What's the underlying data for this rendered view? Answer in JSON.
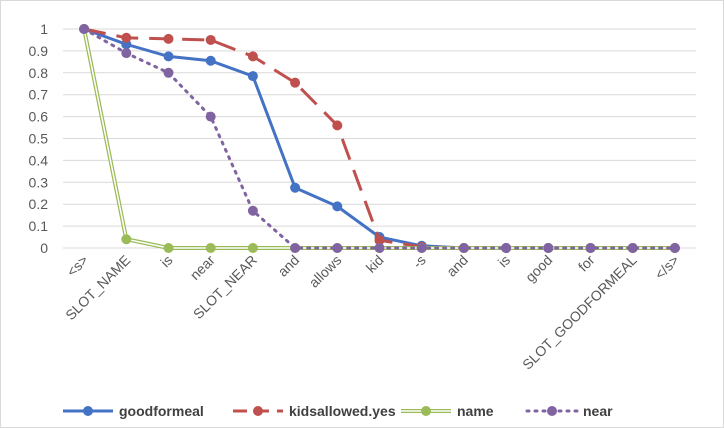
{
  "chart_data": {
    "type": "line",
    "title": "",
    "xlabel": "",
    "ylabel": "",
    "ylim": [
      0,
      1
    ],
    "yticks": [
      0,
      0.1,
      0.2,
      0.3,
      0.4,
      0.5,
      0.6,
      0.7,
      0.8,
      0.9,
      1
    ],
    "grid": true,
    "legend_position": "bottom",
    "categories": [
      "<s>",
      "SLOT_NAME",
      "is",
      "near",
      "SLOT_NEAR",
      "and",
      "allows",
      "kid",
      "-s",
      "and",
      "is",
      "good",
      "for",
      "SLOT_GOODFORMEAL",
      "</s>"
    ],
    "series": [
      {
        "name": "goodformeal",
        "color": "#4472c4",
        "style": "solid",
        "values": [
          1,
          0.93,
          0.875,
          0.855,
          0.785,
          0.275,
          0.19,
          0.05,
          0.01,
          0,
          0,
          0,
          0,
          0,
          0
        ]
      },
      {
        "name": "kidsallowed.yes",
        "color": "#c0504d",
        "style": "dashed",
        "values": [
          1,
          0.96,
          0.955,
          0.95,
          0.875,
          0.755,
          0.56,
          0.035,
          0.005,
          0,
          0,
          0,
          0,
          0,
          0
        ]
      },
      {
        "name": "name",
        "color": "#9bbb59",
        "style": "double",
        "values": [
          1,
          0.04,
          0,
          0,
          0,
          0,
          0,
          0,
          0,
          0,
          0,
          0,
          0,
          0,
          0
        ]
      },
      {
        "name": "near",
        "color": "#8064a2",
        "style": "dotted",
        "values": [
          1,
          0.89,
          0.8,
          0.6,
          0.17,
          0,
          0,
          0,
          0,
          0,
          0,
          0,
          0,
          0,
          0
        ]
      }
    ]
  }
}
